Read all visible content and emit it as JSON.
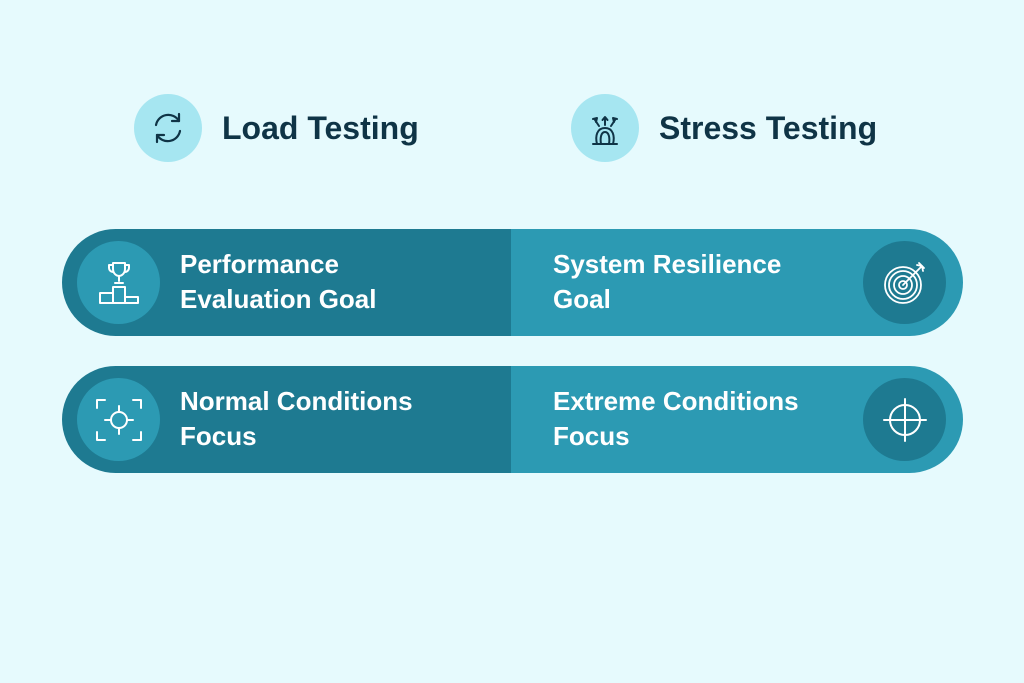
{
  "background_color": "#e6fafd",
  "colors": {
    "title_text": "#0f3446",
    "header_icon_bg": "#a6e6f1",
    "left_panel": "#1e7a91",
    "right_panel": "#2c9ab3",
    "row_text": "#ffffff"
  },
  "headers": {
    "load": {
      "title": "Load Testing",
      "icon": "refresh-cycle-icon"
    },
    "stress": {
      "title": "Stress Testing",
      "icon": "pressure-stress-icon"
    }
  },
  "rows": [
    {
      "left": {
        "line1": "Performance",
        "line2": "Evaluation Goal",
        "icon": "trophy-podium-icon"
      },
      "right": {
        "line1": "System Resilience",
        "line2": "Goal",
        "icon": "target-arrow-icon"
      }
    },
    {
      "left": {
        "line1": "Normal Conditions",
        "line2": "Focus",
        "icon": "focus-frame-icon"
      },
      "right": {
        "line1": "Extreme Conditions",
        "line2": "Focus",
        "icon": "crosshair-icon"
      }
    }
  ]
}
